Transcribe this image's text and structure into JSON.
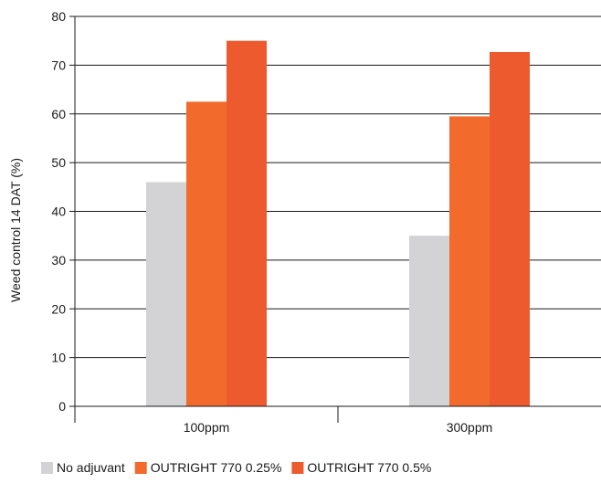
{
  "chart_data": {
    "type": "bar",
    "categories": [
      "100ppm",
      "300ppm"
    ],
    "series": [
      {
        "name": "No adjuvant",
        "color": "#d3d3d5",
        "values": [
          46,
          35
        ]
      },
      {
        "name": "OUTRIGHT 770 0.25%",
        "color": "#f26b2c",
        "values": [
          62.5,
          59.5
        ]
      },
      {
        "name": "OUTRIGHT 770 0.5%",
        "color": "#ec5a2d",
        "values": [
          75,
          72.7
        ]
      }
    ],
    "title": "",
    "xlabel": "",
    "ylabel": "Weed control 14 DAT (%)",
    "ylim": [
      0,
      80
    ],
    "yticks": [
      0,
      10,
      20,
      30,
      40,
      50,
      60,
      70,
      80
    ],
    "grid": true,
    "legend_position": "bottom-left"
  }
}
